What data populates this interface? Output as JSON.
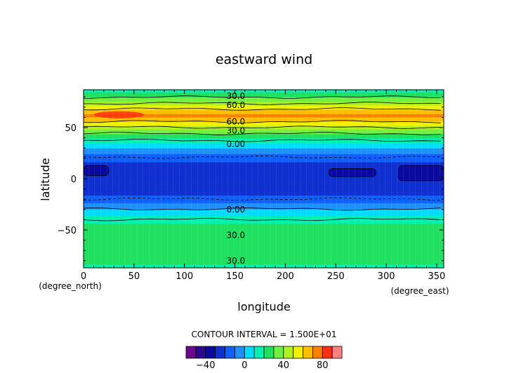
{
  "chart_data": {
    "type": "heatmap",
    "title": "eastward wind",
    "xlabel": "longitude",
    "ylabel": "latitude",
    "x_unit": "(degree_east)",
    "y_unit": "(degree_north)",
    "xlim": [
      0,
      357
    ],
    "ylim": [
      -87,
      87
    ],
    "x_ticks": [
      0,
      50,
      100,
      150,
      200,
      250,
      300,
      350
    ],
    "y_ticks": [
      -50,
      0,
      50
    ],
    "contour_interval_text": "CONTOUR INTERVAL = 1.500E+01",
    "colorbar": {
      "levels": [
        -60,
        -50,
        -40,
        -30,
        -20,
        -10,
        0,
        10,
        20,
        30,
        40,
        50,
        60,
        70,
        80,
        90,
        100
      ],
      "colors": [
        "#6a0a8a",
        "#2a0a8a",
        "#0a0aa0",
        "#1030d0",
        "#1060ff",
        "#2090ff",
        "#00dcff",
        "#00f0b0",
        "#20e060",
        "#70f040",
        "#b0f020",
        "#f0f000",
        "#ffc000",
        "#ff8000",
        "#ff3010",
        "#ff8080"
      ],
      "tick_labels": [
        "-40",
        "0",
        "40",
        "80"
      ],
      "tick_values": [
        -40,
        0,
        40,
        80
      ]
    },
    "zonal_profile": [
      {
        "lat": -87,
        "u": 18
      },
      {
        "lat": -80,
        "u": 22
      },
      {
        "lat": -72,
        "u": 26
      },
      {
        "lat": -62,
        "u": 28
      },
      {
        "lat": -55,
        "u": 29
      },
      {
        "lat": -48,
        "u": 25
      },
      {
        "lat": -42,
        "u": 18
      },
      {
        "lat": -36,
        "u": 10
      },
      {
        "lat": -31,
        "u": 3
      },
      {
        "lat": -27,
        "u": -5
      },
      {
        "lat": -22,
        "u": -12
      },
      {
        "lat": -16,
        "u": -20
      },
      {
        "lat": -10,
        "u": -24
      },
      {
        "lat": 0,
        "u": -27
      },
      {
        "lat": 8,
        "u": -27
      },
      {
        "lat": 15,
        "u": -22
      },
      {
        "lat": 22,
        "u": -14
      },
      {
        "lat": 26,
        "u": -7
      },
      {
        "lat": 30,
        "u": 0
      },
      {
        "lat": 34,
        "u": 8
      },
      {
        "lat": 38,
        "u": 16
      },
      {
        "lat": 42,
        "u": 25
      },
      {
        "lat": 46,
        "u": 34
      },
      {
        "lat": 50,
        "u": 44
      },
      {
        "lat": 54,
        "u": 55
      },
      {
        "lat": 58,
        "u": 66
      },
      {
        "lat": 62,
        "u": 72
      },
      {
        "lat": 66,
        "u": 66
      },
      {
        "lat": 70,
        "u": 55
      },
      {
        "lat": 74,
        "u": 44
      },
      {
        "lat": 78,
        "u": 34
      },
      {
        "lat": 82,
        "u": 25
      },
      {
        "lat": 87,
        "u": 15
      }
    ],
    "contour_labels": [
      {
        "text": "30.0",
        "x": 130,
        "y": 81
      },
      {
        "text": "60.0",
        "x": 130,
        "y": 72
      },
      {
        "text": "60.0",
        "x": 130,
        "y": 56
      },
      {
        "text": "30.0",
        "x": 130,
        "y": 47
      },
      {
        "text": "0.00",
        "x": 130,
        "y": 34
      },
      {
        "text": "0.00",
        "x": 130,
        "y": -30
      },
      {
        "text": "30.0",
        "x": 130,
        "y": -55
      },
      {
        "text": "30.0",
        "x": 130,
        "y": -80
      }
    ],
    "patches": [
      {
        "lon": [
          0,
          25
        ],
        "lat": [
          3,
          13
        ],
        "u": -32
      },
      {
        "lon": [
          243,
          290
        ],
        "lat": [
          2,
          10
        ],
        "u": -32
      },
      {
        "lon": [
          312,
          357
        ],
        "lat": [
          -2,
          13
        ],
        "u": -32
      }
    ],
    "hot_spot": {
      "lon": [
        10,
        60
      ],
      "lat": [
        59,
        66
      ],
      "u": 82
    }
  }
}
